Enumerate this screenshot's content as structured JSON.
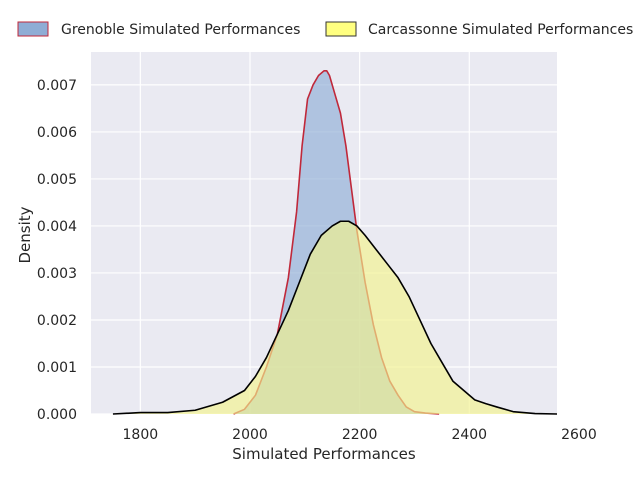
{
  "chart_data": {
    "type": "area",
    "title": "",
    "xlabel": "Simulated Performances",
    "ylabel": "Density",
    "xlim": [
      1710,
      2560
    ],
    "ylim": [
      0,
      0.0077
    ],
    "x_ticks": [
      1800,
      2000,
      2200,
      2400,
      2600
    ],
    "x_tick_labels": [
      "1800",
      "2000",
      "2200",
      "2400",
      "2600"
    ],
    "y_ticks": [
      0,
      0.001,
      0.002,
      0.003,
      0.004,
      0.005,
      0.006,
      0.007
    ],
    "y_tick_labels": [
      "0.000",
      "0.001",
      "0.002",
      "0.003",
      "0.004",
      "0.005",
      "0.006",
      "0.007"
    ],
    "grid": true,
    "legend": {
      "placement": "top, outside plot, two columns"
    },
    "series": [
      {
        "name": "Grenoble Simulated Performances",
        "fill": "#8fadd5",
        "fill_opacity": 0.65,
        "line": "#c0283a",
        "x": [
          1970,
          1990,
          2010,
          2030,
          2050,
          2070,
          2085,
          2095,
          2105,
          2115,
          2125,
          2135,
          2140,
          2145,
          2155,
          2165,
          2175,
          2185,
          2195,
          2210,
          2225,
          2240,
          2255,
          2270,
          2285,
          2300,
          2320,
          2345
        ],
        "y": [
          0,
          0.0001,
          0.0004,
          0.001,
          0.0017,
          0.0029,
          0.0043,
          0.0057,
          0.0067,
          0.007,
          0.0072,
          0.0073,
          0.0073,
          0.0072,
          0.0068,
          0.0064,
          0.0057,
          0.0048,
          0.0039,
          0.0028,
          0.0019,
          0.0012,
          0.0007,
          0.0004,
          0.00015,
          5e-05,
          2e-05,
          0
        ]
      },
      {
        "name": "Carcassonne Simulated Performances",
        "fill": "#f3f38c",
        "fill_opacity": 0.65,
        "line": "#000000",
        "x": [
          1750,
          1800,
          1850,
          1900,
          1950,
          1990,
          2010,
          2030,
          2050,
          2070,
          2090,
          2110,
          2130,
          2150,
          2165,
          2180,
          2195,
          2210,
          2230,
          2250,
          2270,
          2290,
          2310,
          2330,
          2350,
          2370,
          2390,
          2410,
          2430,
          2450,
          2480,
          2520,
          2560
        ],
        "y": [
          0,
          3e-05,
          3e-05,
          8e-05,
          0.00025,
          0.0005,
          0.0008,
          0.0012,
          0.0017,
          0.0022,
          0.0028,
          0.0034,
          0.0038,
          0.004,
          0.0041,
          0.0041,
          0.004,
          0.0038,
          0.0035,
          0.0032,
          0.0029,
          0.0025,
          0.002,
          0.0015,
          0.0011,
          0.0007,
          0.0005,
          0.0003,
          0.00022,
          0.00015,
          5e-05,
          1e-05,
          0
        ]
      }
    ]
  },
  "colors": {
    "plot_background": "#eaeaf2",
    "grid": "#ffffff",
    "overlap_tint": "#b6c8a8"
  }
}
